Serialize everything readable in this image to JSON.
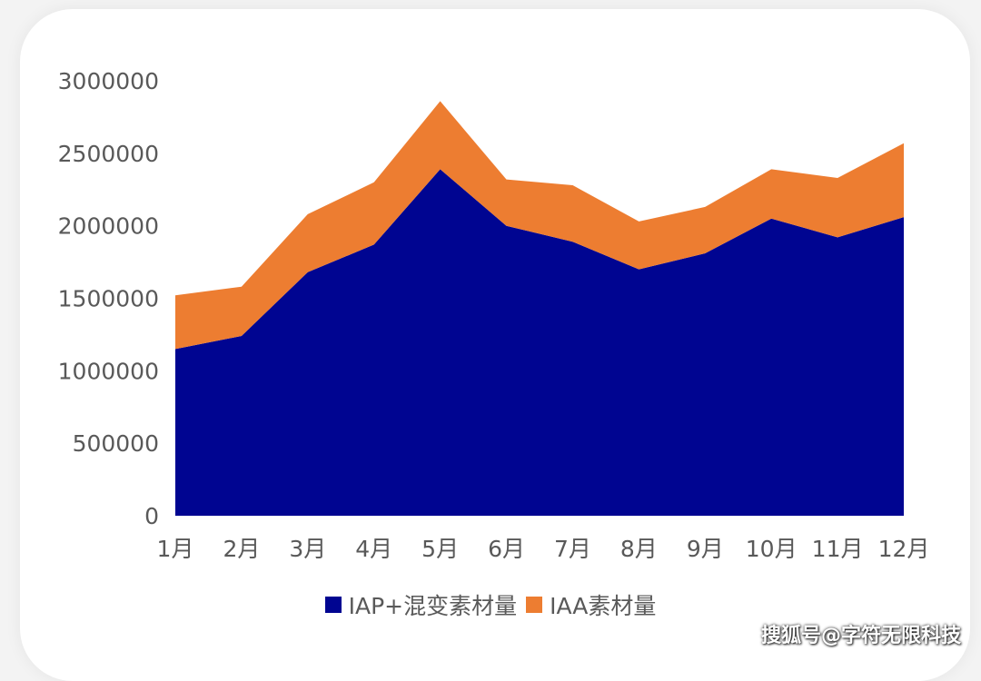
{
  "chart_data": {
    "type": "area",
    "stacked": true,
    "categories": [
      "1月",
      "2月",
      "3月",
      "4月",
      "5月",
      "6月",
      "7月",
      "8月",
      "9月",
      "10月",
      "11月",
      "12月"
    ],
    "series": [
      {
        "name": "IAP+混变素材量",
        "color": "#000591",
        "values": [
          1150000,
          1240000,
          1680000,
          1870000,
          2390000,
          2000000,
          1890000,
          1700000,
          1810000,
          2050000,
          1920000,
          2060000
        ]
      },
      {
        "name": "IAA素材量",
        "color": "#ed7d31",
        "values": [
          370000,
          340000,
          400000,
          430000,
          470000,
          320000,
          390000,
          330000,
          320000,
          340000,
          410000,
          510000
        ]
      }
    ],
    "ylim": [
      0,
      3000000
    ],
    "yticks": [
      0,
      500000,
      1000000,
      1500000,
      2000000,
      2500000,
      3000000
    ],
    "title": "",
    "xlabel": "",
    "ylabel": "",
    "legend": "bottom"
  },
  "watermark": "搜狐号@字符无限科技"
}
